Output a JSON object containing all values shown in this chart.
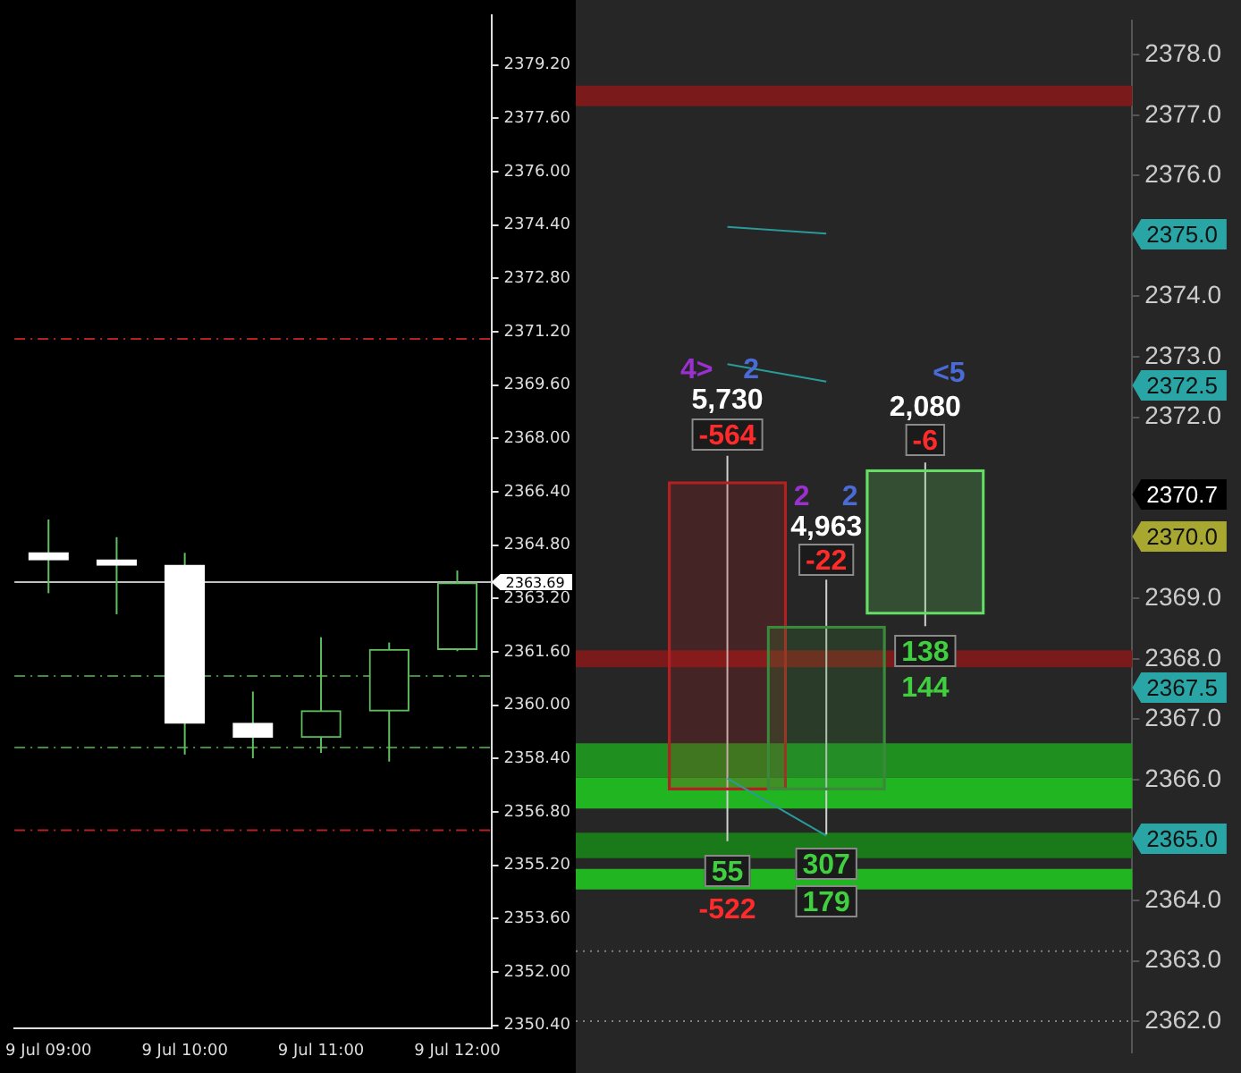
{
  "chart_data": [
    {
      "type": "candlestick",
      "categories": [
        "9 Jul 09:00",
        null,
        "9 Jul 10:00",
        null,
        "9 Jul 11:00",
        null,
        "9 Jul 12:00"
      ],
      "ohlc": [
        [
          2364.57,
          2365.57,
          2363.36,
          2364.36
        ],
        [
          2364.36,
          2365.04,
          2362.73,
          2364.2
        ],
        [
          2364.2,
          2364.57,
          2358.52,
          2359.46
        ],
        [
          2359.46,
          2360.41,
          2358.41,
          2359.04
        ],
        [
          2359.04,
          2362.04,
          2358.57,
          2359.83
        ],
        [
          2359.83,
          2361.88,
          2358.31,
          2361.67
        ],
        [
          2361.67,
          2364.04,
          2361.62,
          2363.67
        ]
      ],
      "color": "#5fbf5f",
      "colors": [
        "#ffffff",
        "#ffffff",
        "#ffffff",
        "#ffffff",
        "#5fbf5f",
        "#5fbf5f",
        "#5fbf5f"
      ],
      "ylim": [
        2350.3,
        2380.7
      ],
      "yticks": [
        {
          "value": 2350.4,
          "label": "2350.40"
        },
        {
          "value": 2352,
          "label": "2352.00"
        },
        {
          "value": 2353.6,
          "label": "2353.60"
        },
        {
          "value": 2355.2,
          "label": "2355.20"
        },
        {
          "value": 2356.8,
          "label": "2356.80"
        },
        {
          "value": 2358.4,
          "label": "2358.40"
        },
        {
          "value": 2360,
          "label": "2360.00"
        },
        {
          "value": 2361.6,
          "label": "2361.60"
        },
        {
          "value": 2363.2,
          "label": "2363.20"
        },
        {
          "value": 2364.8,
          "label": "2364.80"
        },
        {
          "value": 2366.4,
          "label": "2366.40"
        },
        {
          "value": 2368,
          "label": "2368.00"
        },
        {
          "value": 2369.6,
          "label": "2369.60"
        },
        {
          "value": 2371.2,
          "label": "2371.20"
        },
        {
          "value": 2372.8,
          "label": "2372.80"
        },
        {
          "value": 2374.4,
          "label": "2374.40"
        },
        {
          "value": 2376,
          "label": "2376.00"
        },
        {
          "value": 2377.6,
          "label": "2377.60"
        },
        {
          "value": 2379.2,
          "label": "2379.20"
        }
      ],
      "ref_lines": [
        {
          "axis": "y",
          "value": 2370.99,
          "color": "#b22222",
          "line_style": "dashed"
        },
        {
          "axis": "y",
          "value": 2360.88,
          "color": "#3f8f3f",
          "line_style": "dashed"
        },
        {
          "axis": "y",
          "value": 2358.73,
          "color": "#3f8f3f",
          "line_style": "dashed"
        },
        {
          "axis": "y",
          "value": 2356.25,
          "color": "#b22222",
          "line_style": "dashed"
        },
        {
          "axis": "y",
          "value": 2363.69,
          "label": "2363.69",
          "color": "#c0c0c0",
          "line_style": "solid"
        }
      ]
    },
    {
      "type": "candlestick",
      "categories": [
        null,
        null,
        null
      ],
      "ohlc": [
        [
          2370.93,
          2371.36,
          2364.98,
          2365.83
        ],
        [
          2365.83,
          2369.31,
          2365.09,
          2368.54
        ],
        [
          2368.74,
          2371.25,
          2368.54,
          2371.13
        ]
      ],
      "colors": [
        "#b22222",
        "#3a8a3a",
        "#66dd66"
      ],
      "ylim": [
        2361.48,
        2378.57
      ],
      "yticks": [
        {
          "value": 2362,
          "label": "2362.0"
        },
        {
          "value": 2363,
          "label": "2363.0"
        },
        {
          "value": 2364,
          "label": "2364.0"
        },
        {
          "value": 2366,
          "label": "2366.0"
        },
        {
          "value": 2367,
          "label": "2367.0"
        },
        {
          "value": 2368,
          "label": "2368.0"
        },
        {
          "value": 2369,
          "label": "2369.0"
        },
        {
          "value": 2372,
          "label": "2372.0"
        },
        {
          "value": 2373,
          "label": "2373.0"
        },
        {
          "value": 2374,
          "label": "2374.0"
        },
        {
          "value": 2376,
          "label": "2376.0"
        },
        {
          "value": 2377,
          "label": "2377.0"
        },
        {
          "value": 2378,
          "label": "2378.0"
        }
      ],
      "tick_labels": "y",
      "series": [
        {
          "type": "line",
          "color": "#2a9a9a",
          "values": [
            2375.15,
            2375.04,
            null
          ]
        },
        {
          "type": "line",
          "color": "#2a9a9a",
          "values": [
            2372.88,
            2372.59,
            null
          ]
        },
        {
          "type": "line",
          "color": "#2a9a9a",
          "values": [
            2366.02,
            2365.07,
            null
          ]
        }
      ],
      "bands": [
        {
          "axis": "y",
          "from": 2377.15,
          "to": 2377.49,
          "color": "#7a1a1a"
        },
        {
          "axis": "y",
          "from": 2367.86,
          "to": 2368.14,
          "color": "#7a1a1a"
        },
        {
          "axis": "y",
          "from": 2366.03,
          "to": 2366.6,
          "color": "#1f8f1f"
        },
        {
          "axis": "y",
          "from": 2365.52,
          "to": 2366.03,
          "color": "#22b522"
        },
        {
          "axis": "y",
          "from": 2364.7,
          "to": 2365.12,
          "color": "#1a7a1a"
        },
        {
          "axis": "y",
          "from": 2364.18,
          "to": 2364.52,
          "color": "#22b522"
        }
      ],
      "ref_lines": [
        {
          "axis": "y",
          "value": 2363.16,
          "color": "#808080",
          "line_style": "dotted"
        },
        {
          "axis": "y",
          "value": 2362,
          "color": "#808080",
          "line_style": "dotted"
        }
      ],
      "annotations": [
        "2375.0",
        "2372.5",
        "2370.7",
        "2370.0",
        "2367.5",
        "2365.0",
        "4>",
        "2",
        "5,730",
        "-564",
        "55",
        "-522",
        "2",
        "2",
        "4,963",
        "-22",
        "307",
        "179",
        "<5",
        "2,080",
        "-6",
        "138",
        "144"
      ]
    }
  ]
}
